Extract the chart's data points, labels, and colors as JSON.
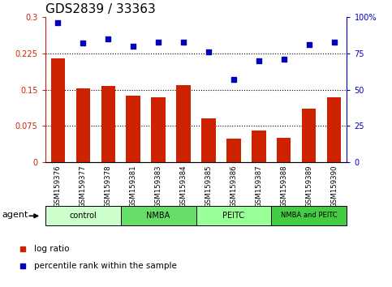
{
  "title": "GDS2839 / 33363",
  "samples": [
    "GSM159376",
    "GSM159377",
    "GSM159378",
    "GSM159381",
    "GSM159383",
    "GSM159384",
    "GSM159385",
    "GSM159386",
    "GSM159387",
    "GSM159388",
    "GSM159389",
    "GSM159390"
  ],
  "log_ratio": [
    0.215,
    0.152,
    0.157,
    0.138,
    0.135,
    0.16,
    0.09,
    0.048,
    0.065,
    0.05,
    0.11,
    0.135
  ],
  "pct_rank": [
    96,
    82,
    85,
    80,
    83,
    83,
    76,
    57,
    70,
    71,
    81,
    83
  ],
  "groups": [
    {
      "label": "control",
      "start": 0,
      "end": 3,
      "color": "#ccffcc"
    },
    {
      "label": "NMBA",
      "start": 3,
      "end": 6,
      "color": "#66dd66"
    },
    {
      "label": "PEITC",
      "start": 6,
      "end": 9,
      "color": "#99ff99"
    },
    {
      "label": "NMBA and PEITC",
      "start": 9,
      "end": 12,
      "color": "#44cc44"
    }
  ],
  "bar_color": "#cc2200",
  "dot_color": "#0000bb",
  "ylim_left": [
    0,
    0.3
  ],
  "ylim_right": [
    0,
    100
  ],
  "yticks_left": [
    0,
    0.075,
    0.15,
    0.225,
    0.3
  ],
  "ytick_labels_left": [
    "0",
    "0.075",
    "0.15",
    "0.225",
    "0.3"
  ],
  "yticks_right": [
    0,
    25,
    50,
    75,
    100
  ],
  "ytick_labels_right": [
    "0",
    "25",
    "50",
    "75",
    "100%"
  ],
  "hlines": [
    0.075,
    0.15,
    0.225
  ],
  "legend_items": [
    {
      "label": "log ratio",
      "color": "#cc2200"
    },
    {
      "label": "percentile rank within the sample",
      "color": "#0000bb"
    }
  ],
  "agent_label": "agent",
  "title_fontsize": 11,
  "bar_width": 0.55,
  "sample_bg_color": "#cccccc",
  "fig_bg_color": "#ffffff"
}
